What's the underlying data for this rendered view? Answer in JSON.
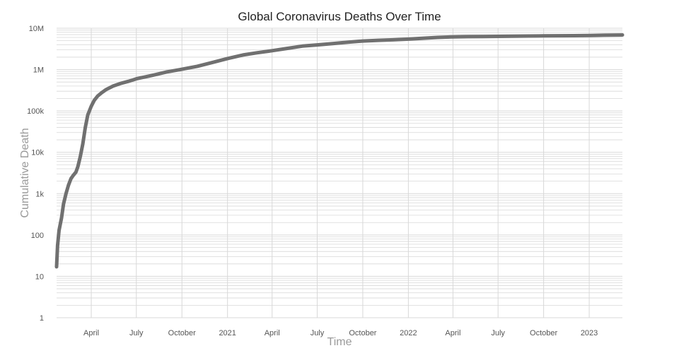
{
  "chart_data": {
    "type": "line",
    "title": "Global Coronavirus Deaths Over Time",
    "xlabel": "Time",
    "ylabel": "Cumulative Death",
    "y_scale": "log",
    "ylim": [
      1,
      10000000
    ],
    "xlim": [
      "2020-01-22",
      "2023-03-09"
    ],
    "grid": true,
    "line_color": "#707070",
    "grid_color": "#d8d8d8",
    "y_ticks": [
      {
        "value": 1,
        "label": "1"
      },
      {
        "value": 10,
        "label": "10"
      },
      {
        "value": 100,
        "label": "100"
      },
      {
        "value": 1000,
        "label": "1k"
      },
      {
        "value": 10000,
        "label": "10k"
      },
      {
        "value": 100000,
        "label": "100k"
      },
      {
        "value": 1000000,
        "label": "1M"
      },
      {
        "value": 10000000,
        "label": "10M"
      }
    ],
    "x_ticks": [
      {
        "date": "2020-04-01",
        "label": "April"
      },
      {
        "date": "2020-07-01",
        "label": "July"
      },
      {
        "date": "2020-10-01",
        "label": "October"
      },
      {
        "date": "2021-01-01",
        "label": "2021"
      },
      {
        "date": "2021-04-01",
        "label": "April"
      },
      {
        "date": "2021-07-01",
        "label": "July"
      },
      {
        "date": "2021-10-01",
        "label": "October"
      },
      {
        "date": "2022-01-01",
        "label": "2022"
      },
      {
        "date": "2022-04-01",
        "label": "April"
      },
      {
        "date": "2022-07-01",
        "label": "July"
      },
      {
        "date": "2022-10-01",
        "label": "October"
      },
      {
        "date": "2023-01-01",
        "label": "2023"
      }
    ],
    "series": [
      {
        "x": [
          "2020-01-22",
          "2020-01-24",
          "2020-01-27",
          "2020-02-01",
          "2020-02-05",
          "2020-02-10",
          "2020-02-15",
          "2020-02-20",
          "2020-02-25",
          "2020-03-01",
          "2020-03-05",
          "2020-03-10",
          "2020-03-15",
          "2020-03-20",
          "2020-03-25",
          "2020-04-01",
          "2020-04-07",
          "2020-04-14",
          "2020-04-21",
          "2020-05-01",
          "2020-05-15",
          "2020-06-01",
          "2020-06-15",
          "2020-07-01",
          "2020-08-01",
          "2020-09-01",
          "2020-10-01",
          "2020-11-01",
          "2020-12-01",
          "2021-01-01",
          "2021-02-01",
          "2021-03-01",
          "2021-04-01",
          "2021-05-01",
          "2021-06-01",
          "2021-07-01",
          "2021-08-01",
          "2021-09-01",
          "2021-10-01",
          "2021-11-01",
          "2021-12-01",
          "2022-01-01",
          "2022-02-01",
          "2022-03-01",
          "2022-04-01",
          "2022-05-01",
          "2022-06-01",
          "2022-07-01",
          "2022-08-01",
          "2022-09-01",
          "2022-10-01",
          "2022-11-01",
          "2022-12-01",
          "2023-01-01",
          "2023-02-01",
          "2023-03-09"
        ],
        "y": [
          17,
          56,
          130,
          260,
          560,
          1000,
          1600,
          2300,
          2800,
          3300,
          4500,
          8000,
          16000,
          40000,
          80000,
          130000,
          180000,
          230000,
          270000,
          330000,
          400000,
          470000,
          520000,
          600000,
          720000,
          880000,
          1020000,
          1200000,
          1480000,
          1850000,
          2250000,
          2550000,
          2860000,
          3250000,
          3700000,
          3950000,
          4250000,
          4600000,
          4900000,
          5100000,
          5250000,
          5450000,
          5750000,
          6000000,
          6200000,
          6270000,
          6320000,
          6370000,
          6430000,
          6500000,
          6540000,
          6590000,
          6630000,
          6700000,
          6790000,
          6870000
        ]
      }
    ]
  }
}
